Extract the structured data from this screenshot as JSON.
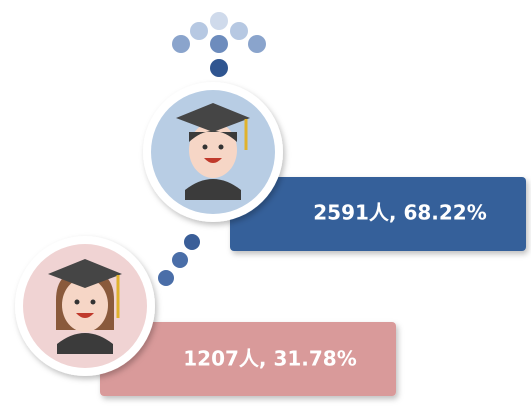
{
  "groups": [
    {
      "label": "2591人, 68.22%"
    },
    {
      "label": "1207人, 31.78%"
    }
  ]
}
